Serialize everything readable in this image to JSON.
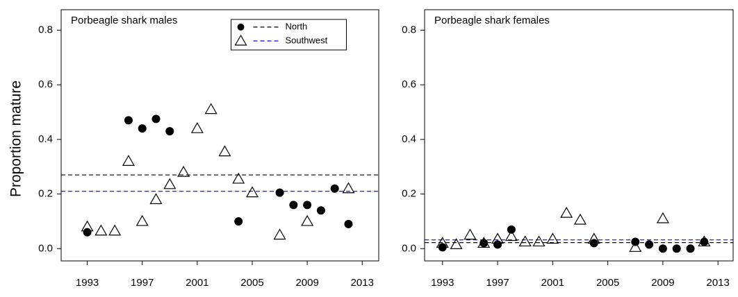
{
  "chart_data": [
    {
      "type": "scatter",
      "title": "Porbeagle shark males",
      "ylabel": "Proportion mature",
      "xlim": [
        1991.1,
        2014.2
      ],
      "ylim": [
        -0.045,
        0.875
      ],
      "xticks": [
        1993,
        1997,
        2001,
        2005,
        2009,
        2013
      ],
      "yticks": [
        {
          "value": 0,
          "label": "0.0"
        },
        0.2,
        0.4,
        0.6,
        0.8
      ],
      "legend": "top-center",
      "series": [
        {
          "name": "North",
          "marker": "filled-circle",
          "marker_color": "#000000",
          "color": "#000000",
          "mean": 0.27,
          "x": [
            1993,
            1996,
            1997,
            1998,
            1999,
            2004,
            2007,
            2008,
            2009,
            2010,
            2011,
            2012
          ],
          "values": [
            0.06,
            0.47,
            0.44,
            0.475,
            0.43,
            0.1,
            0.205,
            0.16,
            0.16,
            0.14,
            0.22,
            0.09
          ]
        },
        {
          "name": "Southwest",
          "marker": "open-triangle",
          "marker_color": "#000000",
          "color": "#0000ff",
          "mean": 0.21,
          "x": [
            1993,
            1994,
            1995,
            1996,
            1997,
            1998,
            1999,
            2000,
            2001,
            2002,
            2003,
            2004,
            2005,
            2007,
            2009,
            2012
          ],
          "values": [
            0.08,
            0.065,
            0.065,
            0.32,
            0.1,
            0.18,
            0.235,
            0.28,
            0.44,
            0.51,
            0.355,
            0.255,
            0.205,
            0.05,
            0.1,
            0.22
          ]
        }
      ]
    },
    {
      "type": "scatter",
      "title": "Porbeagle shark females",
      "xlim": [
        1991.7,
        2014.1
      ],
      "ylim": [
        -0.045,
        0.875
      ],
      "xticks": [
        1993,
        1997,
        2001,
        2005,
        2009,
        2013
      ],
      "yticks": [
        {
          "value": 0,
          "label": "0.0"
        },
        0.2,
        0.4,
        0.6,
        0.8
      ],
      "series": [
        {
          "marker": "filled-circle",
          "marker_color": "#000000",
          "color": "#000000",
          "mean": 0.022,
          "x": [
            1993,
            1996,
            1997,
            1998,
            2004,
            2007,
            2008,
            2009,
            2010,
            2011,
            2012
          ],
          "values": [
            0.005,
            0.02,
            0.015,
            0.07,
            0.02,
            0.025,
            0.015,
            0.0,
            0.0,
            0.0,
            0.025
          ]
        },
        {
          "marker": "open-triangle",
          "marker_color": "#000000",
          "color": "#0000ff",
          "mean": 0.032,
          "x": [
            1993,
            1994,
            1995,
            1996,
            1997,
            1998,
            1999,
            2000,
            2001,
            2002,
            2003,
            2004,
            2007,
            2009,
            2012
          ],
          "values": [
            0.02,
            0.015,
            0.05,
            0.02,
            0.035,
            0.045,
            0.025,
            0.025,
            0.035,
            0.13,
            0.105,
            0.035,
            0.005,
            0.11,
            0.025
          ]
        }
      ]
    }
  ]
}
